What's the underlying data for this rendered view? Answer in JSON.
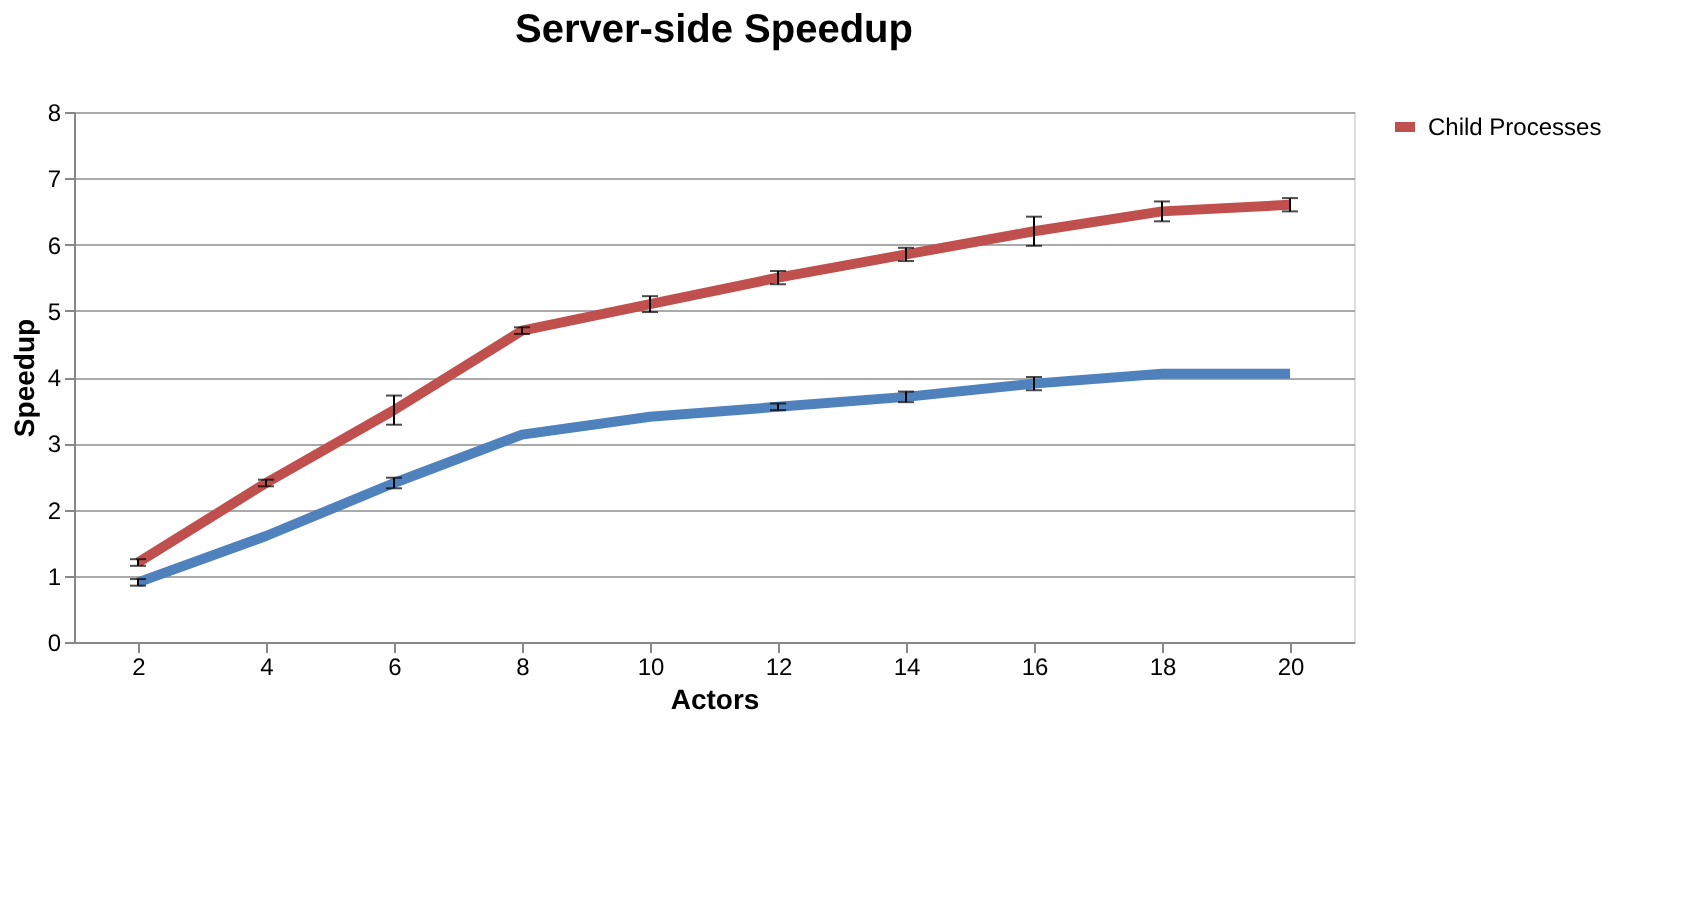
{
  "chart_data": {
    "type": "line",
    "title": "Server-side Speedup",
    "xlabel": "Actors",
    "ylabel": "Speedup",
    "categories": [
      "2",
      "4",
      "6",
      "8",
      "10",
      "12",
      "14",
      "16",
      "18",
      "20"
    ],
    "series": [
      {
        "color": "#4f81bd",
        "values": [
          0.9,
          1.6,
          2.4,
          3.13,
          3.4,
          3.55,
          3.7,
          3.9,
          4.05,
          4.05
        ],
        "errors": [
          0.05,
          null,
          0.08,
          null,
          null,
          0.05,
          0.08,
          0.1,
          null,
          null
        ]
      },
      {
        "name": "Child Processes",
        "color": "#c0504d",
        "values": [
          1.2,
          2.4,
          3.5,
          4.7,
          5.1,
          5.5,
          5.85,
          6.2,
          6.5,
          6.6
        ],
        "errors": [
          0.05,
          0.05,
          0.22,
          0.05,
          0.12,
          0.1,
          0.1,
          0.22,
          0.15,
          0.1
        ]
      }
    ],
    "ylim": [
      0,
      8
    ],
    "yticks": [
      0,
      1,
      2,
      3,
      4,
      5,
      6,
      7,
      8
    ],
    "grid": "y",
    "legend": "top right",
    "marker": "none",
    "line_style": "solid"
  }
}
